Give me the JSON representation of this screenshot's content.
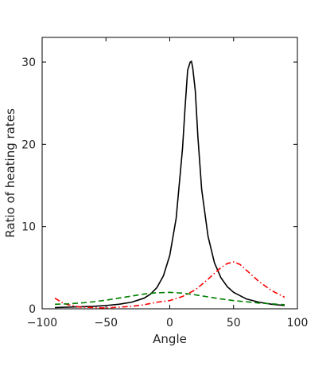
{
  "chart_data": {
    "type": "line",
    "title": "",
    "xlabel": "Angle",
    "ylabel": "Ratio of heating rates",
    "xlim": [
      -100,
      100
    ],
    "ylim": [
      0,
      33
    ],
    "xticks": [
      -100,
      -50,
      0,
      50,
      100
    ],
    "yticks": [
      0,
      10,
      20,
      30
    ],
    "xtick_labels": [
      "−100",
      "−50",
      "0",
      "50",
      "100"
    ],
    "ytick_labels": [
      "0",
      "10",
      "20",
      "30"
    ],
    "grid": false,
    "series": [
      {
        "color": "#000000",
        "style": "solid",
        "x": [
          -90,
          -80,
          -70,
          -60,
          -50,
          -40,
          -30,
          -20,
          -15,
          -10,
          -5,
          0,
          5,
          10,
          12,
          14,
          16,
          17,
          18,
          20,
          22,
          25,
          30,
          35,
          40,
          45,
          50,
          60,
          70,
          80,
          90
        ],
        "y": [
          0.15,
          0.2,
          0.25,
          0.3,
          0.4,
          0.55,
          0.8,
          1.3,
          1.8,
          2.6,
          4.0,
          6.5,
          11.0,
          19.5,
          24.5,
          29.0,
          30.0,
          30.1,
          29.3,
          26.5,
          21.0,
          14.5,
          8.8,
          5.6,
          3.8,
          2.7,
          2.0,
          1.2,
          0.8,
          0.55,
          0.4
        ]
      },
      {
        "color": "#ff0000",
        "style": "dashdot",
        "x": [
          -90,
          -85,
          -80,
          -70,
          -60,
          -50,
          -40,
          -30,
          -20,
          -10,
          0,
          10,
          20,
          30,
          40,
          45,
          50,
          55,
          60,
          70,
          80,
          90
        ],
        "y": [
          1.3,
          0.8,
          0.5,
          0.2,
          0.15,
          0.1,
          0.2,
          0.3,
          0.5,
          0.8,
          1.0,
          1.5,
          2.3,
          3.6,
          5.0,
          5.5,
          5.7,
          5.4,
          4.7,
          3.3,
          2.2,
          1.4
        ]
      },
      {
        "color": "#008000",
        "style": "dashed",
        "x": [
          -90,
          -80,
          -70,
          -60,
          -50,
          -40,
          -30,
          -20,
          -10,
          0,
          10,
          20,
          30,
          40,
          50,
          60,
          70,
          80,
          90
        ],
        "y": [
          0.55,
          0.6,
          0.7,
          0.85,
          1.05,
          1.3,
          1.55,
          1.8,
          1.95,
          2.0,
          1.9,
          1.7,
          1.45,
          1.2,
          1.0,
          0.85,
          0.7,
          0.6,
          0.5
        ]
      }
    ]
  }
}
